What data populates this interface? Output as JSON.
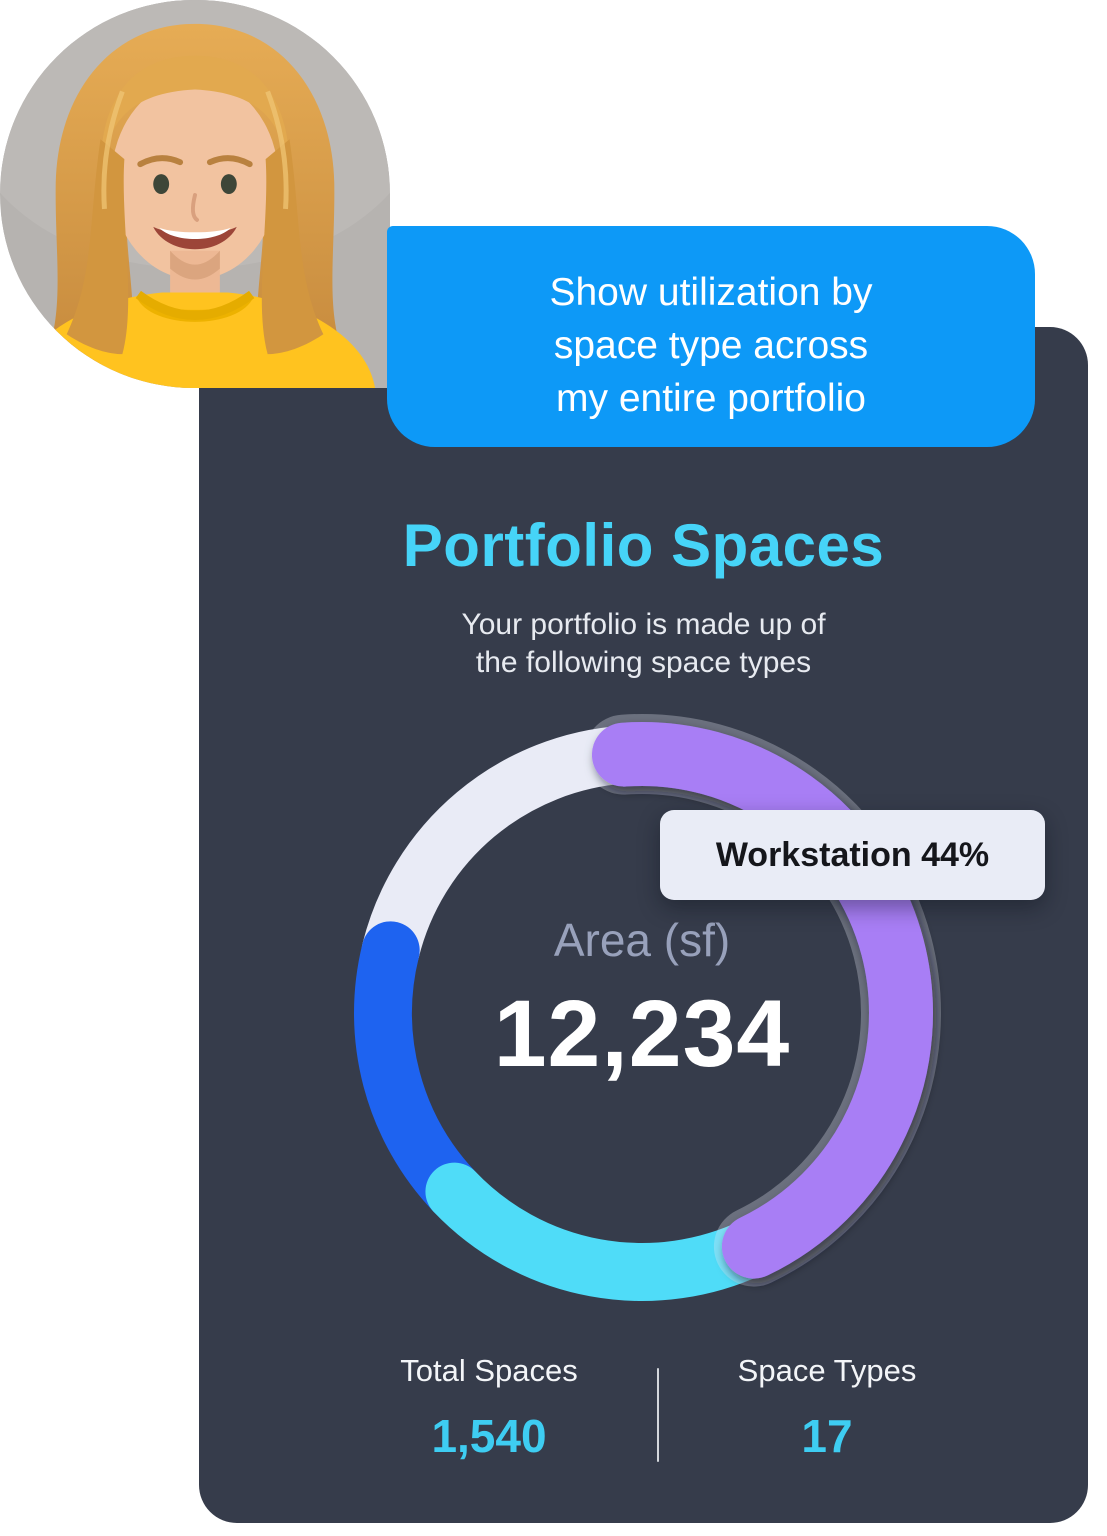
{
  "page": {
    "background": "#FFFFFF"
  },
  "avatar": {
    "icon": "woman-portrait-photo"
  },
  "chat_bubble": {
    "lines": [
      "Show utilization by",
      "space type across",
      "my entire portfolio"
    ],
    "background": "#0D99F7",
    "text_color": "#FFFFFF"
  },
  "card": {
    "background": "#363C4B",
    "title": "Portfolio Spaces",
    "title_color": "#46D4F8",
    "subtitle_lines": [
      "Your portfolio is made up of",
      "the following space types"
    ],
    "stats": [
      {
        "label": "Total Spaces",
        "value": "1,540"
      },
      {
        "label": "Space Types",
        "value": "17"
      }
    ],
    "stat_value_color": "#3ECDF2"
  },
  "chart_data": {
    "type": "pie",
    "variant": "donut",
    "title": "Portfolio Spaces",
    "center_label": "Area (sf)",
    "center_value": "12,234",
    "tooltip": {
      "label": "Workstation",
      "pct": 44,
      "text": "Workstation 44%"
    },
    "segments": [
      {
        "label": "Workstation",
        "pct": 44,
        "color": "#A87EF5",
        "highlighted": true
      },
      {
        "label": null,
        "pct": 20,
        "color": "#4FDCF8",
        "highlighted": false
      },
      {
        "label": null,
        "pct": 16,
        "color": "#1E63F0",
        "highlighted": false
      },
      {
        "label": null,
        "pct": 20,
        "color": "#E9EBF6",
        "highlighted": false
      }
    ],
    "start_angle_deg": -4,
    "draw_order": [
      3,
      2,
      1,
      0
    ],
    "legend": "none"
  }
}
